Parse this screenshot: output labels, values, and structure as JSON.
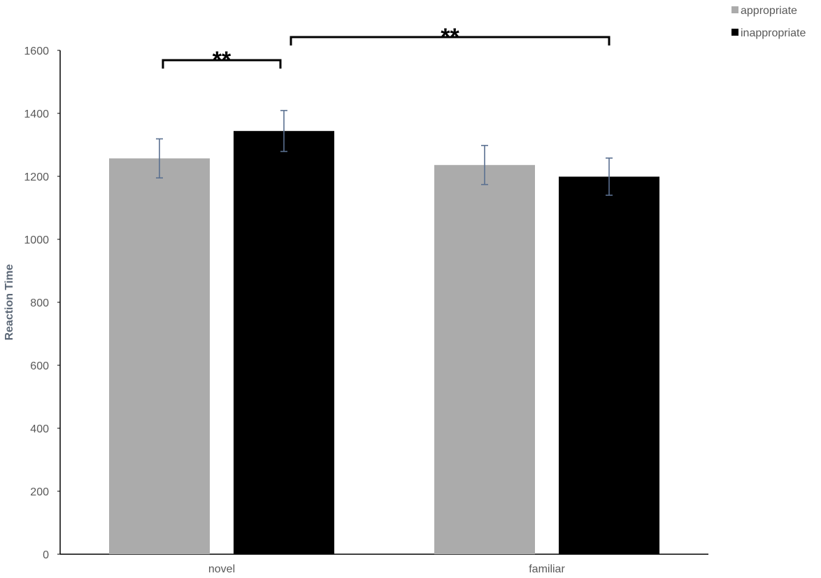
{
  "chart_data": {
    "type": "bar",
    "categories": [
      "novel",
      "familiar"
    ],
    "series": [
      {
        "name": "appropriate",
        "values": [
          1257,
          1236
        ],
        "errors": [
          62,
          62
        ],
        "color": "#ababab"
      },
      {
        "name": "inappropriate",
        "values": [
          1344,
          1199
        ],
        "errors": [
          65,
          59
        ],
        "color": "#000000"
      }
    ],
    "ylabel": "Reaction Time",
    "xlabel": "",
    "ylim": [
      0,
      1600
    ],
    "yticks": [
      "0",
      "200",
      "400",
      "600",
      "800",
      "1000",
      "1200",
      "1400",
      "1600"
    ],
    "ytick_values": [
      0,
      200,
      400,
      600,
      800,
      1000,
      1200,
      1400,
      1600
    ],
    "grid": false,
    "legend_position": "top-right",
    "error_bar_color": "#5a7090",
    "annotations": [
      {
        "label": "**",
        "from": "novel/appropriate",
        "to": "novel/inappropriate"
      },
      {
        "label": "**",
        "from": "novel/inappropriate",
        "to": "familiar/inappropriate"
      }
    ]
  }
}
